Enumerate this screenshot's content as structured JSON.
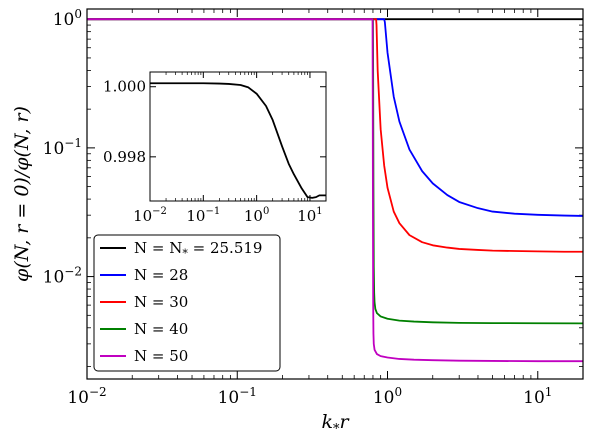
{
  "chart_data": [
    {
      "type": "line",
      "xlabel": "k_* r",
      "ylabel": "φ(N, r = 0)/φ(N, r)",
      "xscale": "log",
      "yscale": "log",
      "xlim": [
        0.01,
        20
      ],
      "ylim": [
        0.0016,
        1.2
      ],
      "x_ticks": [
        {
          "value": 0.01,
          "base": "10",
          "exp": "−2"
        },
        {
          "value": 0.1,
          "base": "10",
          "exp": "−1"
        },
        {
          "value": 1,
          "base": "10",
          "exp": "0"
        },
        {
          "value": 10,
          "base": "10",
          "exp": "1"
        }
      ],
      "y_ticks": [
        {
          "value": 1,
          "base": "10",
          "exp": "0"
        },
        {
          "value": 0.1,
          "base": "10",
          "exp": "−1"
        },
        {
          "value": 0.01,
          "base": "10",
          "exp": "−2"
        }
      ],
      "legend_position": "bottom-left",
      "series": [
        {
          "name": "N = N_* = 25.519",
          "legend_main": "N = N",
          "legend_sub": "*",
          "legend_tail": " = 25.519",
          "color": "#000000",
          "x": [
            0.01,
            1,
            20
          ],
          "y": [
            1.0,
            1.0,
            1.0
          ]
        },
        {
          "name": "N = 28",
          "legend_main": "N = 28",
          "legend_sub": "",
          "legend_tail": "",
          "color": "#0000ff",
          "x": [
            0.01,
            0.95,
            0.96,
            1.0,
            1.1,
            1.2,
            1.4,
            1.7,
            2.0,
            2.5,
            3.0,
            4.0,
            5.0,
            7.0,
            10.0,
            15.0,
            20.0
          ],
          "y": [
            1.0,
            1.0,
            0.95,
            0.55,
            0.25,
            0.16,
            0.097,
            0.066,
            0.053,
            0.043,
            0.038,
            0.034,
            0.032,
            0.0308,
            0.0302,
            0.0298,
            0.0296
          ]
        },
        {
          "name": "N = 30",
          "legend_main": "N = 30",
          "legend_sub": "",
          "legend_tail": "",
          "color": "#ff0000",
          "x": [
            0.01,
            0.84,
            0.845,
            0.86,
            0.9,
            0.95,
            1.0,
            1.1,
            1.2,
            1.4,
            1.7,
            2.0,
            2.5,
            3.0,
            4.0,
            5.0,
            7.0,
            10.0,
            15.0,
            20.0
          ],
          "y": [
            1.0,
            1.0,
            0.9,
            0.4,
            0.14,
            0.073,
            0.049,
            0.032,
            0.026,
            0.021,
            0.0185,
            0.0175,
            0.0168,
            0.0164,
            0.0161,
            0.0159,
            0.0158,
            0.0157,
            0.0156,
            0.0156
          ]
        },
        {
          "name": "N = 40",
          "legend_main": "N = 40",
          "legend_sub": "",
          "legend_tail": "",
          "color": "#008000",
          "x": [
            0.01,
            0.8,
            0.803,
            0.806,
            0.81,
            0.815,
            0.82,
            0.83,
            0.85,
            0.9,
            1.0,
            1.2,
            1.5,
            2.0,
            3.0,
            5.0,
            10.0,
            20.0
          ],
          "y": [
            1.0,
            1.0,
            0.3,
            0.05,
            0.012,
            0.0075,
            0.0063,
            0.0056,
            0.0052,
            0.0049,
            0.0047,
            0.00455,
            0.00447,
            0.00441,
            0.00437,
            0.00435,
            0.00434,
            0.00433
          ]
        },
        {
          "name": "N = 50",
          "legend_main": "N = 50",
          "legend_sub": "",
          "legend_tail": "",
          "color": "#c000c0",
          "x": [
            0.01,
            0.795,
            0.797,
            0.8,
            0.803,
            0.806,
            0.81,
            0.82,
            0.85,
            0.9,
            1.0,
            1.2,
            1.5,
            2.0,
            3.0,
            5.0,
            10.0,
            20.0
          ],
          "y": [
            1.0,
            1.0,
            0.3,
            0.03,
            0.006,
            0.0036,
            0.003,
            0.0027,
            0.0025,
            0.00241,
            0.00235,
            0.00229,
            0.00226,
            0.00224,
            0.00222,
            0.00221,
            0.0022,
            0.0022
          ]
        }
      ]
    },
    {
      "type": "line",
      "xlabel": "",
      "ylabel": "",
      "xscale": "log",
      "yscale": "linear",
      "xlim": [
        0.01,
        20
      ],
      "ylim": [
        0.99674,
        1.00042
      ],
      "x_ticks": [
        {
          "value": 0.01,
          "base": "10",
          "exp": "−2"
        },
        {
          "value": 0.1,
          "base": "10",
          "exp": "−1"
        },
        {
          "value": 1,
          "base": "10",
          "exp": "0"
        },
        {
          "value": 10,
          "base": "10",
          "exp": "1"
        }
      ],
      "y_ticks": [
        {
          "value": 1.0,
          "label": "1.000"
        },
        {
          "value": 0.998,
          "label": "0.998"
        }
      ],
      "series": [
        {
          "name": "N = N_* = 25.519",
          "color": "#000000",
          "x": [
            0.01,
            0.05,
            0.1,
            0.2,
            0.3,
            0.5,
            0.7,
            1.0,
            1.5,
            2.0,
            3.0,
            4.0,
            5.0,
            7.0,
            9.0,
            11.0,
            13.0,
            15.0,
            17.0,
            20.0
          ],
          "y": [
            1.0001,
            1.0001,
            1.0001,
            1.00009,
            1.00008,
            1.00005,
            0.99998,
            0.9998,
            0.99945,
            0.99905,
            0.9983,
            0.9978,
            0.9975,
            0.9971,
            0.99685,
            0.99683,
            0.99685,
            0.9969,
            0.9969,
            0.9969
          ]
        }
      ]
    }
  ]
}
